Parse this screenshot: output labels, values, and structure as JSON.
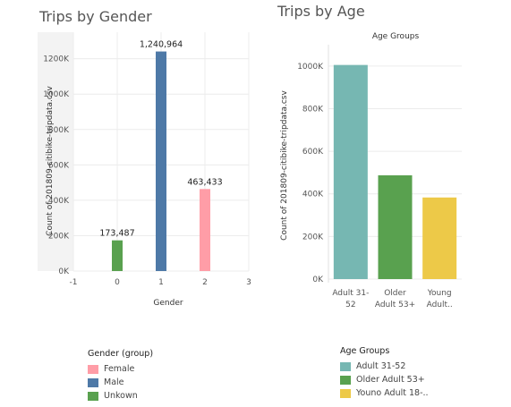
{
  "chart_data": [
    {
      "type": "bar",
      "title": "Trips by Gender",
      "xlabel": "Gender",
      "ylabel": "Count of 201809-citibike-tripdata.csv",
      "xlim": [
        -1,
        3
      ],
      "xticks": [
        "-1",
        "0",
        "1",
        "2",
        "3"
      ],
      "ylim": [
        0,
        1350000
      ],
      "yticks": [
        0,
        200000,
        400000,
        600000,
        800000,
        1000000,
        1200000
      ],
      "ytick_labels": [
        "0K",
        "200K",
        "400K",
        "600K",
        "800K",
        "1000K",
        "1200K"
      ],
      "x": [
        0,
        1,
        2
      ],
      "values": [
        173487,
        1240964,
        463433
      ],
      "data_labels": [
        "173,487",
        "1,240,964",
        "463,433"
      ],
      "colors": [
        "#59a14f",
        "#4e79a7",
        "#ff9da7"
      ],
      "legend": {
        "title": "Gender (group)",
        "position": "bottom",
        "items": [
          {
            "label": "Female",
            "color": "#ff9da7"
          },
          {
            "label": "Male",
            "color": "#4e79a7"
          },
          {
            "label": "Unkown",
            "color": "#59a14f"
          }
        ]
      }
    },
    {
      "type": "bar",
      "title": "Trips by Age",
      "subtitle": "Age Groups",
      "ylabel": "Count of 201809-citibike-tripdata.csv",
      "ylim": [
        0,
        1100000
      ],
      "yticks": [
        0,
        200000,
        400000,
        600000,
        800000,
        1000000
      ],
      "ytick_labels": [
        "0K",
        "200K",
        "400K",
        "600K",
        "800K",
        "1000K"
      ],
      "categories": [
        [
          "Adult 31-",
          "52"
        ],
        [
          "Older",
          "Adult 53+"
        ],
        [
          "Young",
          "Adult.."
        ]
      ],
      "values": [
        1005000,
        487000,
        383000
      ],
      "colors": [
        "#76b7b2",
        "#59a14f",
        "#edc948"
      ],
      "legend": {
        "title": "Age Groups",
        "position": "bottom",
        "items": [
          {
            "label": "Adult 31-52",
            "color": "#76b7b2"
          },
          {
            "label": "Older Adult 53+",
            "color": "#59a14f"
          },
          {
            "label": "Youno Adult 18-..",
            "color": "#edc948"
          }
        ]
      }
    }
  ]
}
